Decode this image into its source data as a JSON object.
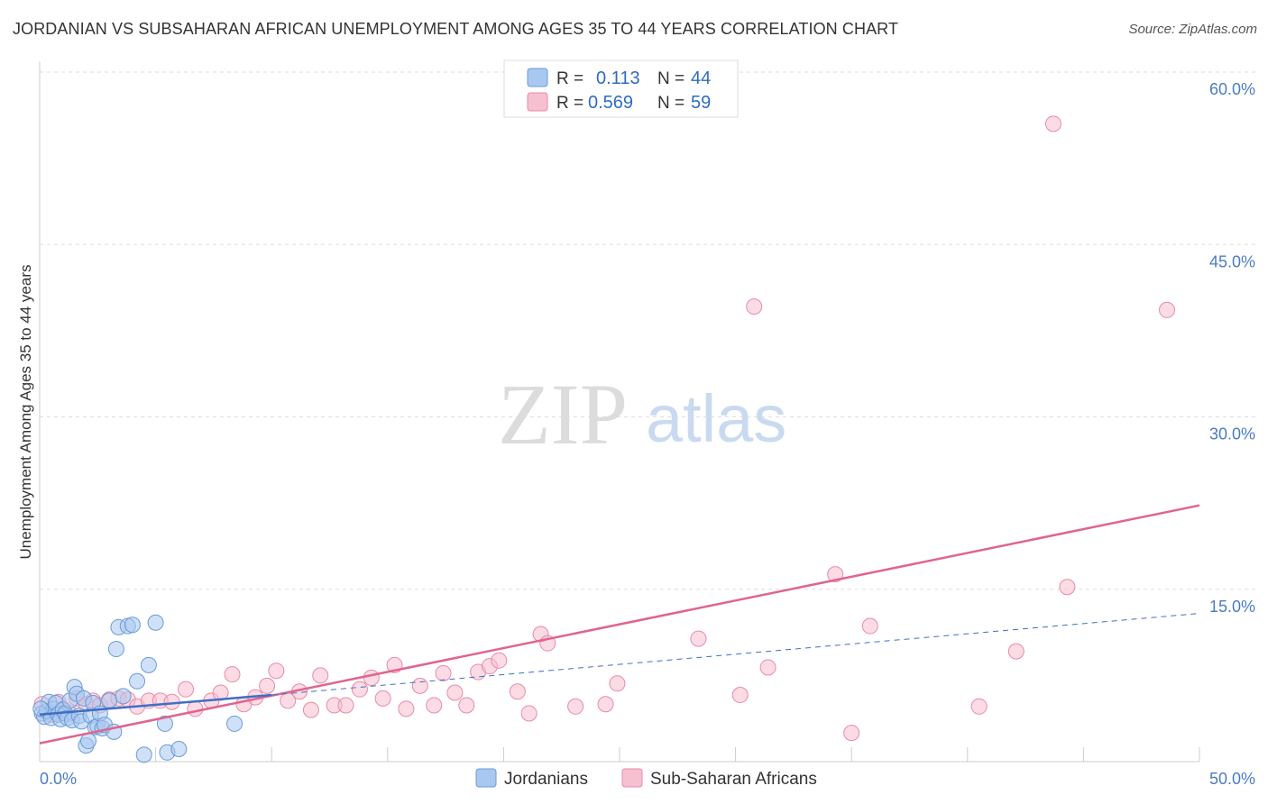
{
  "header": {
    "title": "JORDANIAN VS SUBSAHARAN AFRICAN UNEMPLOYMENT AMONG AGES 35 TO 44 YEARS CORRELATION CHART",
    "source": "Source: ZipAtlas.com"
  },
  "watermark": {
    "zip": "ZIP",
    "atlas": "atlas"
  },
  "colors": {
    "jordanians_fill": "#a9c8f0",
    "jordanians_stroke": "#6a9bd8",
    "jordanians_line": "#3e6fc4",
    "subsaharan_fill": "#f7c0d0",
    "subsaharan_stroke": "#e98aa8",
    "subsaharan_line": "#e0648f",
    "grid": "#dddddd",
    "tick_text": "#4a7cc4"
  },
  "chart_data": {
    "type": "scatter",
    "title": "JORDANIAN VS SUBSAHARAN AFRICAN UNEMPLOYMENT AMONG AGES 35 TO 44 YEARS CORRELATION CHART",
    "xlabel": "",
    "ylabel": "Unemployment Among Ages 35 to 44 years",
    "xlim": [
      0,
      50
    ],
    "ylim": [
      0,
      60
    ],
    "x_tick_labels": [
      "0.0%",
      "50.0%"
    ],
    "y_ticks": [
      {
        "value": 15,
        "label": "15.0%"
      },
      {
        "value": 30,
        "label": "30.0%"
      },
      {
        "value": 45,
        "label": "45.0%"
      },
      {
        "value": 60,
        "label": "60.0%"
      }
    ],
    "legend": {
      "entries": [
        {
          "r_label": "R =",
          "r_value": "0.113",
          "n_label": "N =",
          "n_value": "44"
        },
        {
          "r_label": "R =",
          "r_value": "0.569",
          "n_label": "N =",
          "n_value": "59"
        }
      ],
      "bottom": [
        "Jordanians",
        "Sub-Saharan Africans"
      ]
    },
    "series": [
      {
        "name": "Jordanians",
        "trend": {
          "x": [
            0,
            10
          ],
          "y": [
            4.1,
            5.8
          ],
          "dashed_x": [
            10,
            50
          ],
          "dashed_y": [
            5.8,
            12.9
          ]
        },
        "points": [
          [
            0.1,
            4.2
          ],
          [
            0.2,
            3.9
          ],
          [
            0.3,
            4.4
          ],
          [
            0.4,
            5.2
          ],
          [
            0.5,
            3.8
          ],
          [
            0.6,
            4.6
          ],
          [
            0.7,
            5.1
          ],
          [
            0.8,
            4.1
          ],
          [
            0.9,
            3.7
          ],
          [
            1.0,
            4.5
          ],
          [
            1.1,
            4.2
          ],
          [
            1.2,
            3.8
          ],
          [
            1.3,
            5.3
          ],
          [
            1.4,
            3.6
          ],
          [
            1.5,
            6.5
          ],
          [
            1.6,
            5.9
          ],
          [
            1.7,
            4.0
          ],
          [
            1.8,
            3.5
          ],
          [
            1.9,
            5.5
          ],
          [
            2.0,
            1.4
          ],
          [
            2.1,
            1.8
          ],
          [
            2.2,
            4.0
          ],
          [
            2.3,
            5.1
          ],
          [
            2.4,
            3.0
          ],
          [
            2.5,
            3.1
          ],
          [
            2.6,
            4.2
          ],
          [
            2.7,
            2.9
          ],
          [
            2.8,
            3.2
          ],
          [
            3.0,
            5.3
          ],
          [
            3.2,
            2.6
          ],
          [
            3.3,
            9.8
          ],
          [
            3.4,
            11.7
          ],
          [
            3.6,
            5.7
          ],
          [
            3.8,
            11.8
          ],
          [
            4.0,
            11.9
          ],
          [
            4.2,
            7.0
          ],
          [
            4.5,
            0.6
          ],
          [
            4.7,
            8.4
          ],
          [
            5.0,
            12.1
          ],
          [
            5.4,
            3.3
          ],
          [
            5.5,
            0.8
          ],
          [
            6.0,
            1.1
          ],
          [
            8.4,
            3.3
          ],
          [
            0.05,
            4.6
          ]
        ]
      },
      {
        "name": "Sub-Saharan Africans",
        "trend": {
          "x": [
            0,
            50
          ],
          "y": [
            1.6,
            22.3
          ]
        },
        "points": [
          [
            0.1,
            5.0
          ],
          [
            0.5,
            4.1
          ],
          [
            0.8,
            5.2
          ],
          [
            1.0,
            4.6
          ],
          [
            1.3,
            4.2
          ],
          [
            1.6,
            5.5
          ],
          [
            2.0,
            5.0
          ],
          [
            2.3,
            5.3
          ],
          [
            2.6,
            4.9
          ],
          [
            3.0,
            5.4
          ],
          [
            3.4,
            5.5
          ],
          [
            3.8,
            5.4
          ],
          [
            4.2,
            4.8
          ],
          [
            4.7,
            5.3
          ],
          [
            5.2,
            5.3
          ],
          [
            5.7,
            5.2
          ],
          [
            6.3,
            6.3
          ],
          [
            6.7,
            4.6
          ],
          [
            7.4,
            5.3
          ],
          [
            7.8,
            6.0
          ],
          [
            8.3,
            7.6
          ],
          [
            8.8,
            5.0
          ],
          [
            9.3,
            5.6
          ],
          [
            9.8,
            6.6
          ],
          [
            10.2,
            7.9
          ],
          [
            10.7,
            5.3
          ],
          [
            11.2,
            6.1
          ],
          [
            11.7,
            4.5
          ],
          [
            12.1,
            7.5
          ],
          [
            12.7,
            4.9
          ],
          [
            13.2,
            4.9
          ],
          [
            13.8,
            6.3
          ],
          [
            14.3,
            7.3
          ],
          [
            14.8,
            5.5
          ],
          [
            15.3,
            8.4
          ],
          [
            15.8,
            4.6
          ],
          [
            16.4,
            6.6
          ],
          [
            17.0,
            4.9
          ],
          [
            17.4,
            7.7
          ],
          [
            17.9,
            6.0
          ],
          [
            18.4,
            4.9
          ],
          [
            18.9,
            7.8
          ],
          [
            19.4,
            8.3
          ],
          [
            19.8,
            8.8
          ],
          [
            20.6,
            6.1
          ],
          [
            21.1,
            4.2
          ],
          [
            21.6,
            11.1
          ],
          [
            21.9,
            10.3
          ],
          [
            23.1,
            4.8
          ],
          [
            24.4,
            5.0
          ],
          [
            24.9,
            6.8
          ],
          [
            28.4,
            10.7
          ],
          [
            30.2,
            5.8
          ],
          [
            30.8,
            39.6
          ],
          [
            31.4,
            8.2
          ],
          [
            35.0,
            2.5
          ],
          [
            35.8,
            11.8
          ],
          [
            42.1,
            9.6
          ],
          [
            44.3,
            15.2
          ]
        ],
        "extra_points": [
          [
            34.3,
            16.3
          ],
          [
            43.7,
            55.5
          ],
          [
            48.6,
            39.3
          ],
          [
            40.5,
            4.8
          ]
        ]
      }
    ]
  }
}
